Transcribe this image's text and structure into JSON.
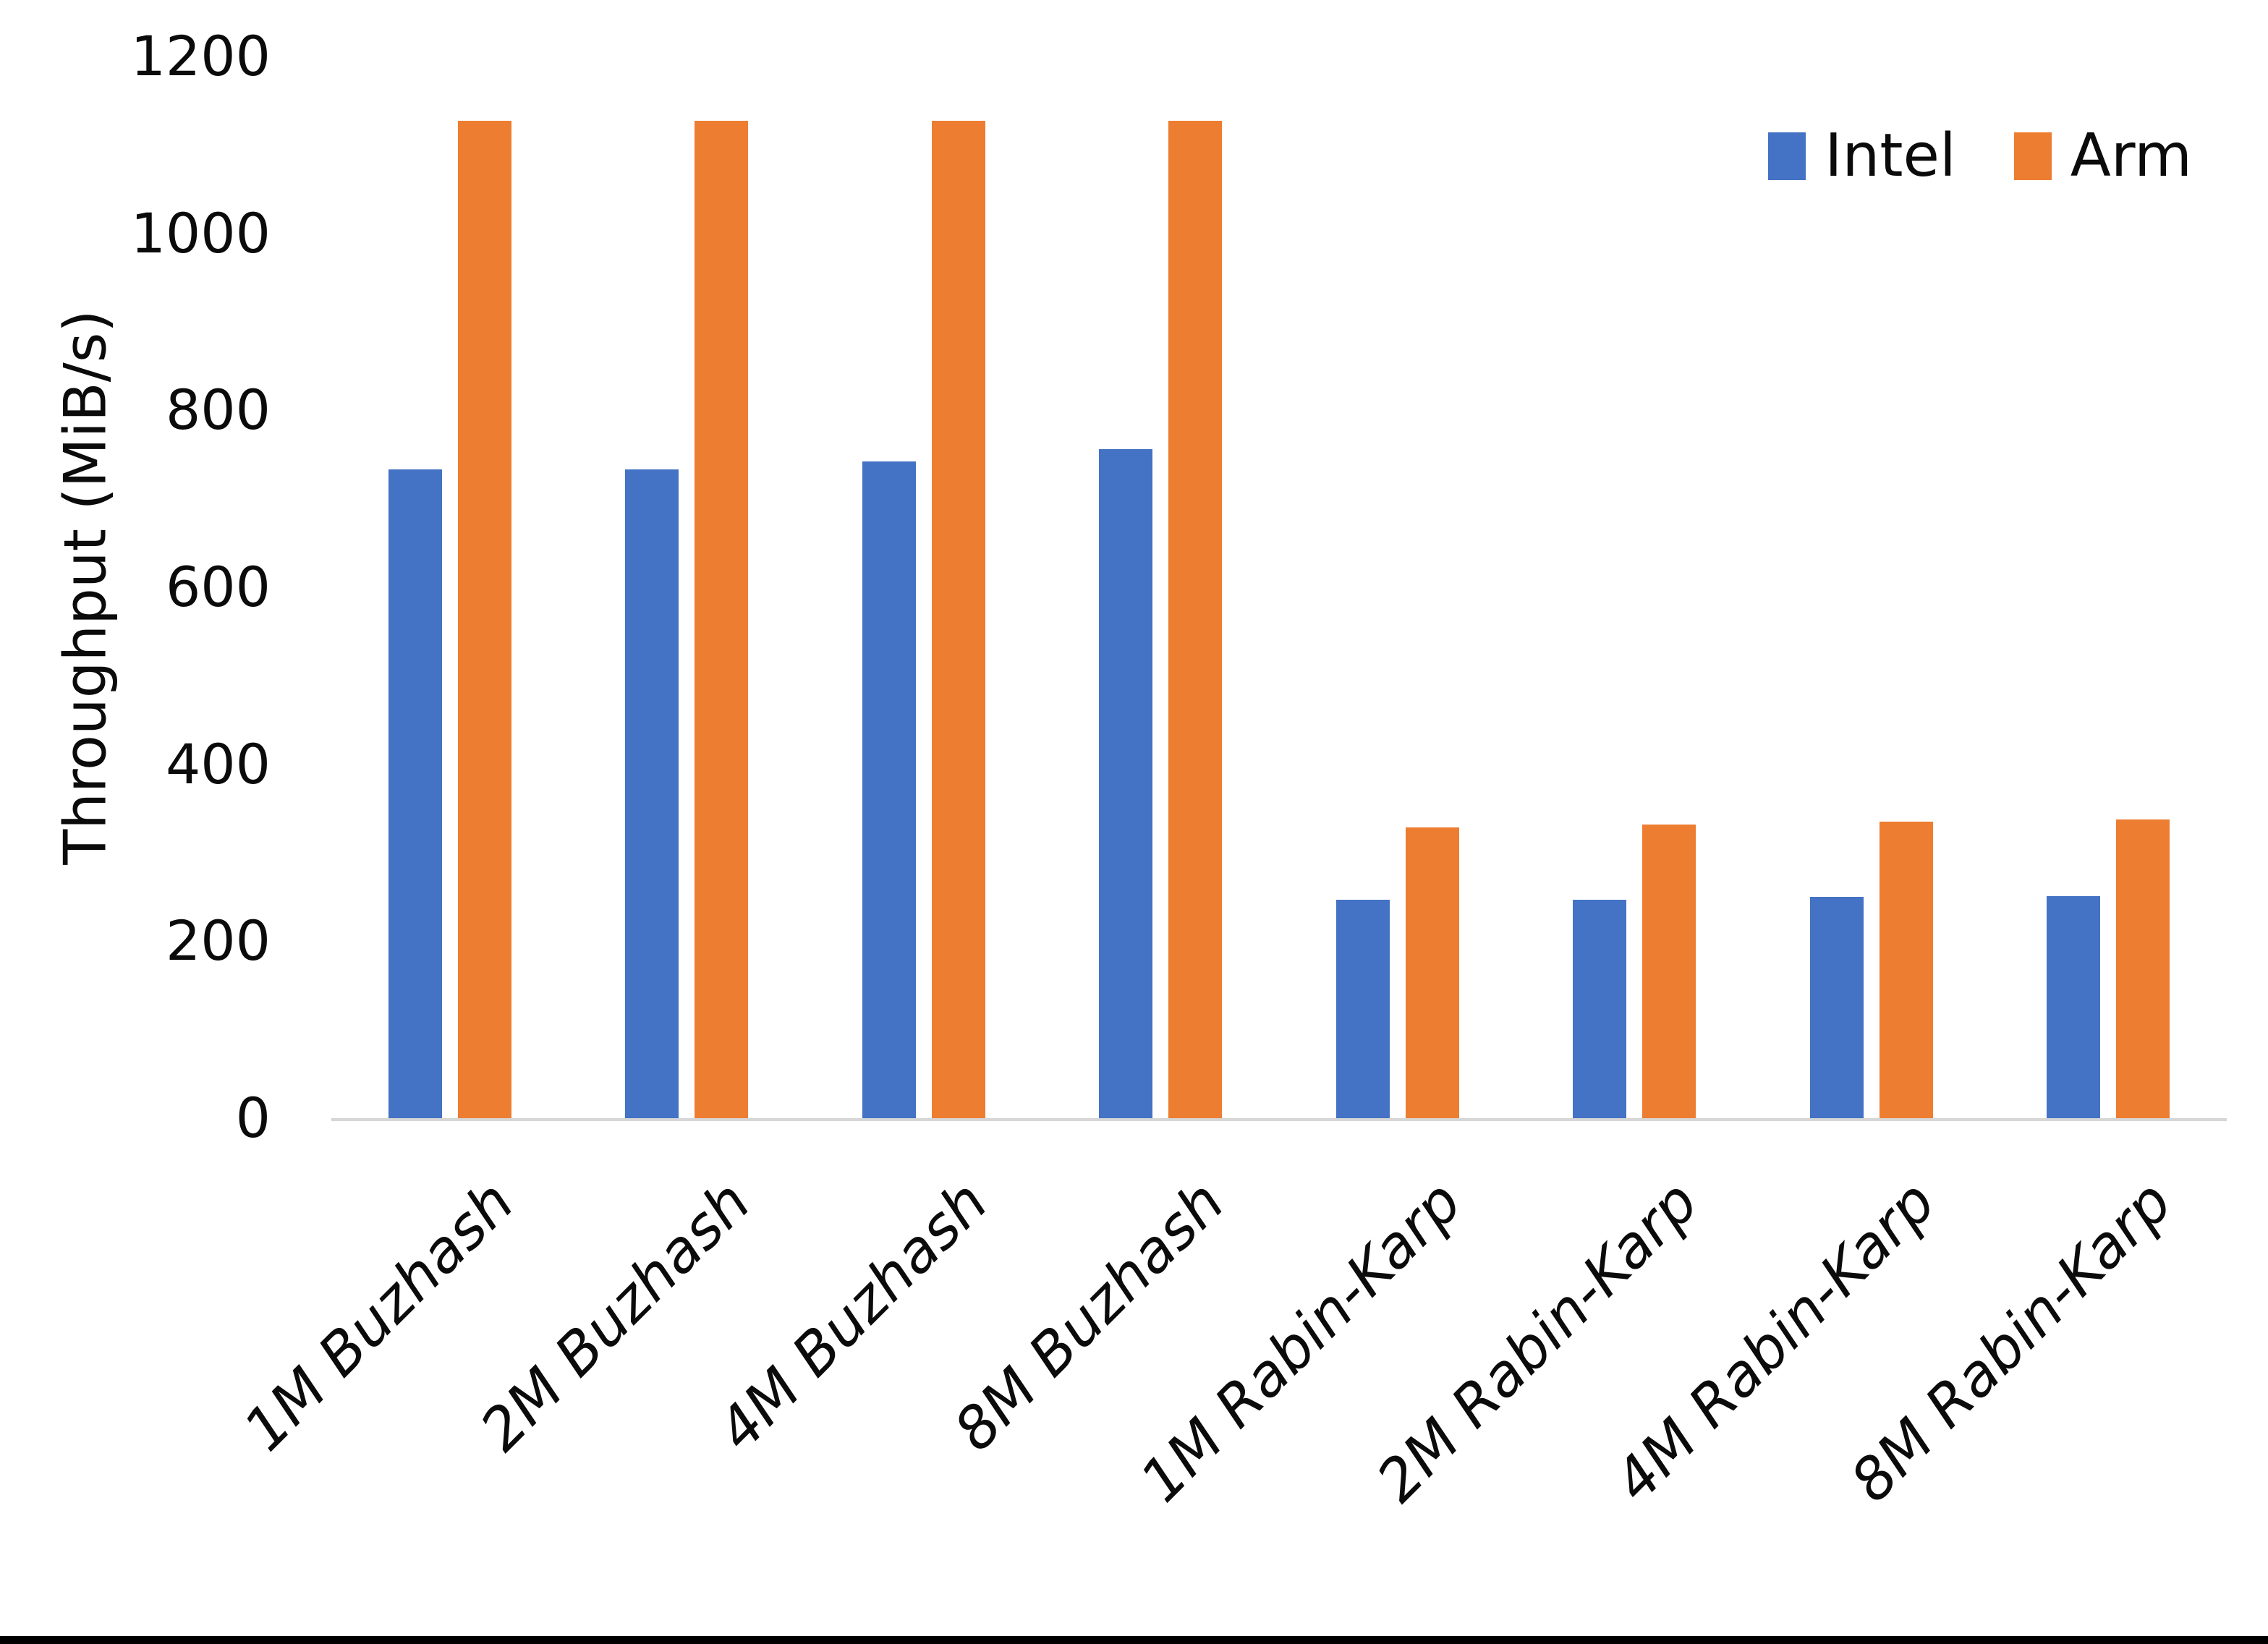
{
  "chart_data": {
    "type": "bar",
    "title": "",
    "xlabel": "",
    "ylabel": "Throughput (MiB/s)",
    "ylim": [
      0,
      1200
    ],
    "ytick_interval": 200,
    "grid": false,
    "legend_position": "top-right",
    "categories": [
      "1M Buzhash",
      "2M Buzhash",
      "4M Buzhash",
      "8M Buzhash",
      "1M Rabin-Karp",
      "2M Rabin-Karp",
      "4M Rabin-Karp",
      "8M Rabin-Karp"
    ],
    "series": [
      {
        "name": "Intel",
        "color": "#4472C4",
        "values": [
          733,
          733,
          742,
          756,
          247,
          247,
          250,
          251
        ]
      },
      {
        "name": "Arm",
        "color": "#ED7D31",
        "values": [
          1127,
          1127,
          1127,
          1127,
          329,
          332,
          335,
          338
        ]
      }
    ]
  },
  "colors": {
    "background": "#ffffff",
    "text": "#0b0b0b",
    "axis_line": "#d6d6d6",
    "bottom_border": "#000000"
  }
}
